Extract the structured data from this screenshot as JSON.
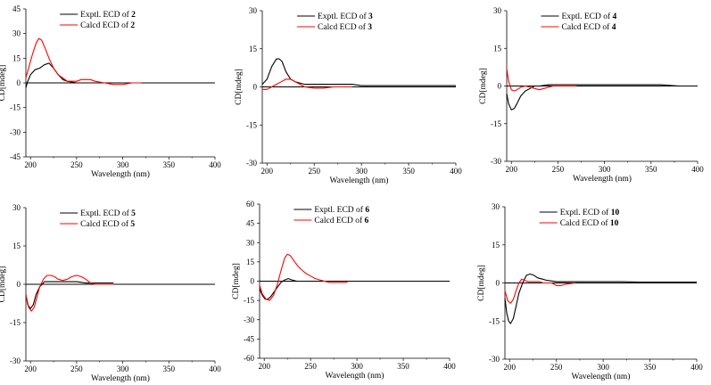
{
  "figure": {
    "description_colors": {
      "exptl": "#000000",
      "calcd": "#ff0000",
      "axis": "#000000"
    }
  },
  "chart_data": [
    {
      "type": "line",
      "panel": "2",
      "xlabel": "Wavelength (nm)",
      "ylabel": "CD[mdeg]",
      "xlim": [
        195,
        400
      ],
      "ylim": [
        -45,
        45
      ],
      "xticks": [
        200,
        250,
        300,
        350,
        400
      ],
      "yticks": [
        -45,
        -30,
        -15,
        0,
        15,
        30,
        45
      ],
      "legend": [
        {
          "prefix": "Exptl. ECD of ",
          "compound": "2",
          "color": "#000000"
        },
        {
          "prefix": "Calcd ECD of ",
          "compound": "2",
          "color": "#ff0000"
        }
      ],
      "series": [
        {
          "name": "Exptl. ECD of 2",
          "color": "#000000",
          "x": [
            195,
            197,
            200,
            205,
            210,
            215,
            220,
            225,
            230,
            235,
            240,
            250,
            260,
            270
          ],
          "y": [
            -3,
            1,
            5,
            8,
            9,
            11,
            12,
            9,
            5,
            2,
            1,
            0,
            0,
            0
          ]
        },
        {
          "name": "Calcd ECD of 2",
          "color": "#ff0000",
          "x": [
            195,
            198,
            202,
            206,
            209,
            212,
            216,
            220,
            225,
            230,
            235,
            240,
            245,
            250,
            255,
            260,
            265,
            270,
            280,
            290,
            300,
            310,
            320
          ],
          "y": [
            3,
            9,
            17,
            24,
            27,
            26,
            21,
            15,
            9,
            5,
            3,
            1,
            1,
            1,
            2,
            2,
            2,
            1,
            0,
            -1,
            -1,
            0,
            0
          ]
        }
      ]
    },
    {
      "type": "line",
      "panel": "3",
      "xlabel": "Wavelength (nm)",
      "ylabel": "CD[mdeg]",
      "xlim": [
        195,
        400
      ],
      "ylim": [
        -30,
        30
      ],
      "xticks": [
        200,
        250,
        300,
        350,
        400
      ],
      "yticks": [
        -30,
        -15,
        0,
        15,
        30
      ],
      "legend": [
        {
          "prefix": "Exptl. ECD of ",
          "compound": "3",
          "color": "#000000"
        },
        {
          "prefix": "Calcd ECD of ",
          "compound": "3",
          "color": "#ff0000"
        }
      ],
      "series": [
        {
          "name": "Exptl. ECD of 3",
          "color": "#000000",
          "x": [
            195,
            200,
            205,
            210,
            213,
            216,
            220,
            225,
            230,
            240,
            250,
            260,
            270,
            280,
            290,
            300,
            320,
            340,
            360,
            380,
            400
          ],
          "y": [
            1,
            3,
            8,
            11,
            11,
            10,
            6,
            3,
            2,
            1,
            1,
            1,
            1,
            1,
            1,
            0.5,
            0.5,
            0.5,
            0.5,
            0.5,
            0.5
          ]
        },
        {
          "name": "Calcd ECD of 3",
          "color": "#ff0000",
          "x": [
            195,
            200,
            205,
            210,
            215,
            220,
            225,
            230,
            235,
            240,
            250,
            260,
            270,
            280,
            290
          ],
          "y": [
            -1,
            -1,
            0,
            1,
            2,
            3,
            3,
            2,
            1,
            0,
            -0.5,
            -0.5,
            0,
            0,
            0
          ]
        }
      ]
    },
    {
      "type": "line",
      "panel": "4",
      "xlabel": "Wavelength (nm)",
      "ylabel": "CD[mdeg]",
      "xlim": [
        195,
        400
      ],
      "ylim": [
        -30,
        30
      ],
      "xticks": [
        200,
        250,
        300,
        350,
        400
      ],
      "yticks": [
        -30,
        -15,
        0,
        15,
        30
      ],
      "legend": [
        {
          "prefix": "Exptl. ECD of ",
          "compound": "4",
          "color": "#000000"
        },
        {
          "prefix": "Calcd ECD of ",
          "compound": "4",
          "color": "#ff0000"
        }
      ],
      "series": [
        {
          "name": "Exptl. ECD of 4",
          "color": "#000000",
          "x": [
            195,
            197,
            200,
            203,
            206,
            210,
            215,
            220,
            225,
            230,
            240,
            250,
            260,
            270,
            280,
            300,
            320,
            340,
            360,
            380,
            400
          ],
          "y": [
            -3,
            -7,
            -9.5,
            -9,
            -7,
            -4,
            -2,
            -1,
            0,
            0,
            0.5,
            0.5,
            0.5,
            0.5,
            0.5,
            0.5,
            0.5,
            0.5,
            0.5,
            0,
            0
          ]
        },
        {
          "name": "Calcd ECD of 4",
          "color": "#ff0000",
          "x": [
            195,
            197,
            200,
            203,
            206,
            210,
            215,
            220,
            225,
            230,
            235,
            240,
            245,
            250,
            255,
            260,
            270
          ],
          "y": [
            7,
            2,
            -1.5,
            -2,
            -1.5,
            -0.5,
            0,
            -0.5,
            -1,
            -1.5,
            -1,
            -0.5,
            0,
            0,
            0,
            0,
            0
          ]
        }
      ]
    },
    {
      "type": "line",
      "panel": "5",
      "xlabel": "Wavelength (nm)",
      "ylabel": "CD[mdeg]",
      "xlim": [
        195,
        400
      ],
      "ylim": [
        -30,
        30
      ],
      "xticks": [
        200,
        250,
        300,
        350,
        400
      ],
      "yticks": [
        -30,
        -15,
        0,
        15,
        30
      ],
      "legend": [
        {
          "prefix": "Exptl. ECD of ",
          "compound": "5",
          "color": "#000000"
        },
        {
          "prefix": "Calcd ECD of ",
          "compound": "5",
          "color": "#ff0000"
        }
      ],
      "series": [
        {
          "name": "Exptl. ECD of 5",
          "color": "#000000",
          "x": [
            195,
            197,
            200,
            203,
            206,
            210,
            215,
            220,
            230,
            240,
            250,
            260,
            270,
            280,
            290
          ],
          "y": [
            -4,
            -8,
            -9.5,
            -8,
            -4,
            -1,
            1,
            1,
            1,
            1,
            1,
            0.5,
            0.5,
            0.5,
            0.5
          ]
        },
        {
          "name": "Calcd ECD of 5",
          "color": "#ff0000",
          "x": [
            195,
            198,
            201,
            204,
            207,
            210,
            214,
            218,
            222,
            226,
            230,
            235,
            240,
            245,
            250,
            255,
            260,
            265,
            270,
            280,
            290
          ],
          "y": [
            -4,
            -9,
            -10.5,
            -9,
            -5,
            -1,
            2,
            3.5,
            3.5,
            3,
            2,
            1.5,
            2,
            3,
            3.5,
            3,
            2,
            0.5,
            0,
            0,
            0
          ]
        }
      ]
    },
    {
      "type": "line",
      "panel": "6",
      "xlabel": "Wavelength (nm)",
      "ylabel": "CD[mdeg]",
      "xlim": [
        195,
        400
      ],
      "ylim": [
        -60,
        60
      ],
      "xticks": [
        200,
        250,
        300,
        350,
        400
      ],
      "yticks": [
        -60,
        -45,
        -30,
        -15,
        0,
        15,
        30,
        45,
        60
      ],
      "legend": [
        {
          "prefix": "Exptl. ECD of ",
          "compound": "6",
          "color": "#000000"
        },
        {
          "prefix": "Calcd ECD of ",
          "compound": "6",
          "color": "#ff0000"
        }
      ],
      "series": [
        {
          "name": "Exptl. ECD of 6",
          "color": "#000000",
          "x": [
            195,
            198,
            201,
            204,
            207,
            210,
            214,
            218,
            222,
            226,
            230,
            235,
            240,
            250,
            260,
            270
          ],
          "y": [
            -6,
            -11,
            -14,
            -14,
            -12,
            -9,
            -5,
            -1,
            1,
            2,
            1,
            0,
            0,
            0,
            0,
            0
          ]
        },
        {
          "name": "Calcd ECD of 6",
          "color": "#ff0000",
          "x": [
            195,
            198,
            202,
            206,
            210,
            214,
            218,
            222,
            225,
            228,
            232,
            236,
            240,
            245,
            250,
            255,
            260,
            265,
            270,
            280,
            290
          ],
          "y": [
            -3,
            -10,
            -14,
            -15,
            -11,
            -3,
            8,
            18,
            21,
            20,
            16,
            12,
            9,
            6,
            4,
            2,
            1,
            0,
            -1,
            -1,
            -1
          ]
        }
      ]
    },
    {
      "type": "line",
      "panel": "10",
      "xlabel": "Wavelength (nm)",
      "ylabel": "CD[mdeg]",
      "xlim": [
        195,
        400
      ],
      "ylim": [
        -30,
        30
      ],
      "xticks": [
        200,
        250,
        300,
        350,
        400
      ],
      "yticks": [
        -30,
        -15,
        0,
        15,
        30
      ],
      "legend": [
        {
          "prefix": "Exptl. ECD of ",
          "compound": "10",
          "color": "#000000"
        },
        {
          "prefix": "Calcd ECD of ",
          "compound": "10",
          "color": "#ff0000"
        }
      ],
      "series": [
        {
          "name": "Exptl. ECD of 10",
          "color": "#000000",
          "x": [
            195,
            197,
            199,
            201,
            204,
            207,
            210,
            214,
            218,
            222,
            226,
            230,
            235,
            240,
            250,
            260,
            270,
            280,
            300,
            320,
            340,
            360,
            380,
            400
          ],
          "y": [
            -6,
            -12,
            -15,
            -16,
            -14,
            -9,
            -4,
            0,
            3,
            3.5,
            3,
            2,
            1.5,
            1,
            0.5,
            0.5,
            0.5,
            0.5,
            0.5,
            0.5,
            0.3,
            0.3,
            0.3,
            0.3
          ]
        },
        {
          "name": "Calcd ECD of 10",
          "color": "#ff0000",
          "x": [
            195,
            198,
            201,
            204,
            207,
            210,
            213,
            216,
            220,
            224,
            228,
            232,
            236,
            240,
            245,
            250,
            255,
            260,
            270
          ],
          "y": [
            -3,
            -7,
            -8,
            -6.5,
            -3,
            0,
            1.5,
            1,
            0.5,
            0.5,
            0.5,
            0.5,
            0,
            0,
            0,
            -1,
            -1,
            -0.5,
            0
          ]
        }
      ]
    }
  ]
}
